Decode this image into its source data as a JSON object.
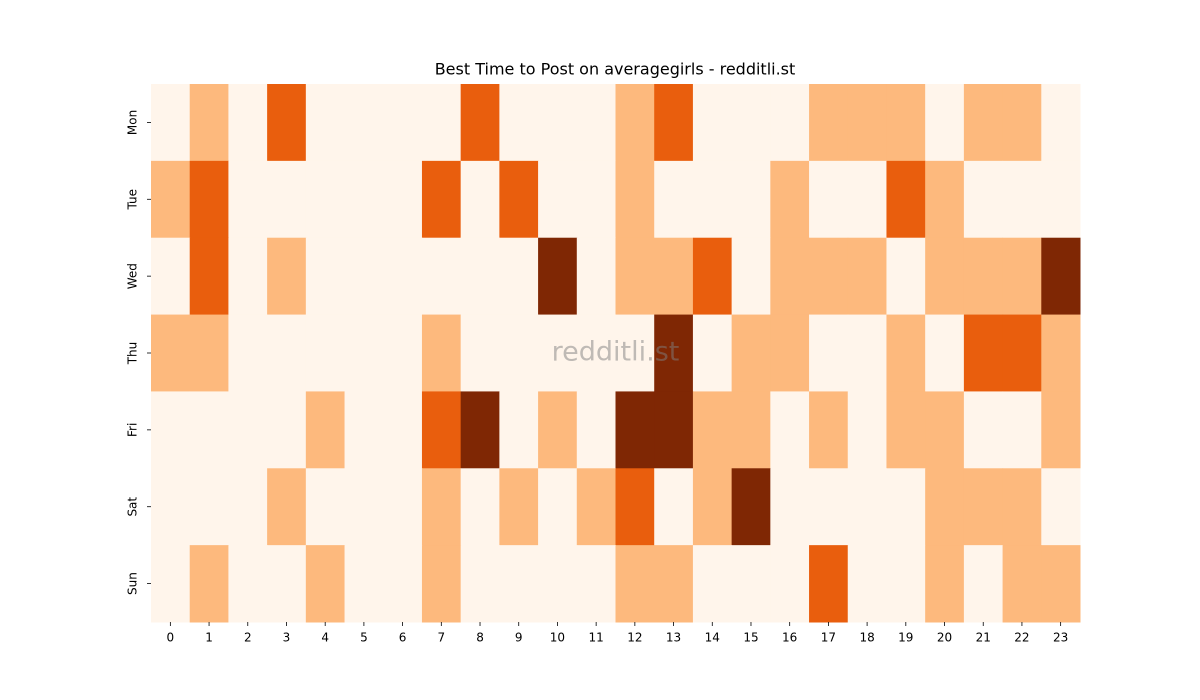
{
  "chart_data": {
    "type": "heatmap",
    "title": "Best Time to Post on averagegirls - redditli.st",
    "watermark": "redditli.st",
    "x": [
      "0",
      "1",
      "2",
      "3",
      "4",
      "5",
      "6",
      "7",
      "8",
      "9",
      "10",
      "11",
      "12",
      "13",
      "14",
      "15",
      "16",
      "17",
      "18",
      "19",
      "20",
      "21",
      "22",
      "23"
    ],
    "y": [
      "Mon",
      "Tue",
      "Wed",
      "Thu",
      "Fri",
      "Sat",
      "Sun"
    ],
    "colors": [
      "#fff5eb",
      "#fdb97d",
      "#e95e0d",
      "#7f2704"
    ],
    "values": [
      [
        0,
        1,
        0,
        2,
        0,
        0,
        0,
        0,
        2,
        0,
        0,
        0,
        1,
        2,
        0,
        0,
        0,
        1,
        1,
        1,
        0,
        1,
        1,
        0
      ],
      [
        1,
        2,
        0,
        0,
        0,
        0,
        0,
        2,
        0,
        2,
        0,
        0,
        1,
        0,
        0,
        0,
        1,
        0,
        0,
        2,
        1,
        0,
        0,
        0
      ],
      [
        0,
        2,
        0,
        1,
        0,
        0,
        0,
        0,
        0,
        0,
        3,
        0,
        1,
        1,
        2,
        0,
        1,
        1,
        1,
        0,
        1,
        1,
        1,
        3
      ],
      [
        1,
        1,
        0,
        0,
        0,
        0,
        0,
        1,
        0,
        0,
        0,
        0,
        0,
        3,
        0,
        1,
        1,
        0,
        0,
        1,
        0,
        2,
        2,
        1
      ],
      [
        0,
        0,
        0,
        0,
        1,
        0,
        0,
        2,
        3,
        0,
        1,
        0,
        3,
        3,
        1,
        1,
        0,
        1,
        0,
        1,
        1,
        0,
        0,
        1
      ],
      [
        0,
        0,
        0,
        1,
        0,
        0,
        0,
        1,
        0,
        1,
        0,
        1,
        2,
        0,
        1,
        3,
        0,
        0,
        0,
        0,
        1,
        1,
        1,
        0
      ],
      [
        0,
        1,
        0,
        0,
        1,
        0,
        0,
        1,
        0,
        0,
        0,
        0,
        1,
        1,
        0,
        0,
        0,
        2,
        0,
        0,
        1,
        0,
        1,
        1
      ]
    ]
  }
}
